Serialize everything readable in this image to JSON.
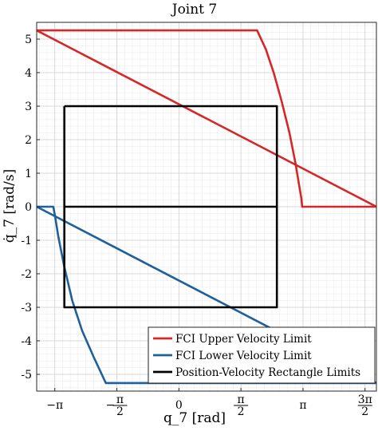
{
  "chart_data": {
    "type": "line",
    "title": "Joint 7",
    "xlabel": "q_7 [rad]",
    "ylabel": "q̇_7 [rad/s]",
    "xlim": [
      -3.6,
      5.0
    ],
    "ylim": [
      -5.5,
      5.5
    ],
    "grid": true,
    "minor_grid": true,
    "legend_position": "bottom-right",
    "xticks": [
      {
        "value": -3.1416,
        "label": "−π",
        "kind": "simple"
      },
      {
        "value": -1.5708,
        "label": "π/2",
        "sign": "−",
        "kind": "frac"
      },
      {
        "value": 0,
        "label": "0",
        "kind": "simple"
      },
      {
        "value": 1.5708,
        "label": "π/2",
        "kind": "frac"
      },
      {
        "value": 3.1416,
        "label": "π",
        "kind": "simple"
      },
      {
        "value": 4.7124,
        "label": "3π/2",
        "kind": "frac"
      }
    ],
    "yticks": [
      {
        "value": 5,
        "label": "5"
      },
      {
        "value": 4,
        "label": "4"
      },
      {
        "value": 3,
        "label": "3"
      },
      {
        "value": 2,
        "label": "2"
      },
      {
        "value": 1,
        "label": "1"
      },
      {
        "value": 0,
        "label": "0"
      },
      {
        "value": -1,
        "label": "-1"
      },
      {
        "value": -2,
        "label": "-2"
      },
      {
        "value": -3,
        "label": "-3"
      },
      {
        "value": -4,
        "label": "-4"
      },
      {
        "value": -5,
        "label": "-5"
      }
    ],
    "series": [
      {
        "name": "FCI Upper Velocity Limit",
        "color": "#D62728",
        "points": [
          [
            -3.6,
            5.26
          ],
          [
            1.98,
            5.26
          ],
          [
            2.2,
            4.7
          ],
          [
            2.4,
            4.0
          ],
          [
            2.6,
            3.15
          ],
          [
            2.8,
            2.2
          ],
          [
            2.95,
            1.3
          ],
          [
            3.05,
            0.6
          ],
          [
            3.1,
            0.25
          ],
          [
            3.12,
            0.0
          ],
          [
            5.0,
            0.0
          ]
        ]
      },
      {
        "name": "FCI Upper Velocity Limit (diagonal)",
        "color": "#D62728",
        "points": [
          [
            -3.6,
            5.26
          ],
          [
            5.0,
            0.0
          ]
        ]
      },
      {
        "name": "FCI Lower Velocity Limit",
        "color": "#1F5F9A",
        "points": [
          [
            -3.6,
            0.0
          ],
          [
            -3.18,
            0.0
          ],
          [
            -3.14,
            -0.25
          ],
          [
            -3.05,
            -0.9
          ],
          [
            -2.9,
            -1.8
          ],
          [
            -2.7,
            -2.8
          ],
          [
            -2.45,
            -3.7
          ],
          [
            -2.15,
            -4.5
          ],
          [
            -1.85,
            -5.26
          ],
          [
            5.0,
            -5.26
          ]
        ]
      },
      {
        "name": "FCI Lower Velocity Limit (diagonal)",
        "color": "#1F5F9A",
        "points": [
          [
            -3.6,
            0.0
          ],
          [
            5.0,
            -5.26
          ]
        ]
      },
      {
        "name": "Position-Velocity Rectangle Limits",
        "color": "#000000",
        "points": [
          [
            -2.9,
            3.0
          ],
          [
            2.48,
            3.0
          ],
          [
            2.48,
            -3.0
          ],
          [
            -2.9,
            -3.0
          ],
          [
            -2.9,
            3.0
          ]
        ]
      },
      {
        "name": "Position-Velocity Rectangle Limits (zero line)",
        "color": "#000000",
        "points": [
          [
            -2.9,
            0.0
          ],
          [
            2.48,
            0.0
          ]
        ]
      }
    ],
    "legend": [
      {
        "label": "FCI Upper Velocity Limit",
        "color": "#D62728"
      },
      {
        "label": "FCI Lower Velocity Limit",
        "color": "#1F5F9A"
      },
      {
        "label": "Position-Velocity Rectangle Limits",
        "color": "#000000"
      }
    ]
  }
}
